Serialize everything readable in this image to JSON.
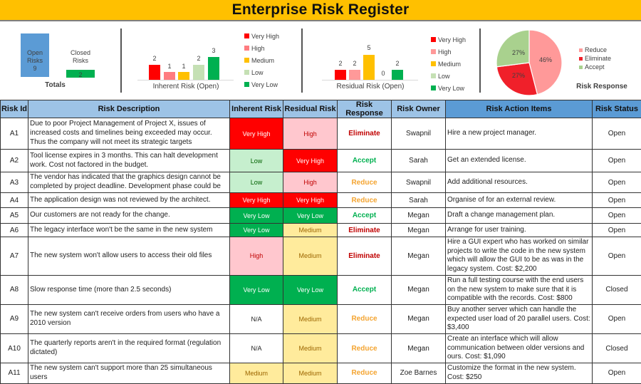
{
  "title": "Enterprise Risk Register",
  "colors": {
    "title_bg": "#FFC000",
    "very_high": "#FF0000",
    "high": "#FFC7CE",
    "high_bar": "#FF7C80",
    "medium": "#FFEB9C",
    "medium_bar": "#FFC000",
    "low": "#C6EFCE",
    "low_bar": "#C5E0B4",
    "very_low": "#00B050",
    "eliminate_text": "#C00000",
    "accept_text": "#00B050",
    "reduce_text": "#F4A430",
    "header_bg": "#9DC3E6",
    "header_bg_dark": "#5B9BD5"
  },
  "dashboard": {
    "totals": {
      "title": "Totals",
      "open_label_1": "Open",
      "open_label_2": "Risks",
      "open_value": "9",
      "closed_label_1": "Closed",
      "closed_label_2": "Risks",
      "closed_value": "2"
    },
    "inherent": {
      "title": "Inherent Risk (Open)",
      "labels": [
        "2",
        "1",
        "1",
        "2",
        "3"
      ]
    },
    "residual": {
      "title": "Residual Risk (Open)",
      "labels": [
        "2",
        "2",
        "5",
        "0",
        "2"
      ]
    },
    "legend": [
      "Very High",
      "High",
      "Medium",
      "Low",
      "Very Low"
    ],
    "pie": {
      "title": "Risk Response",
      "labels": [
        "46%",
        "27%",
        "27%"
      ],
      "legend": [
        "Reduce",
        "Eliminate",
        "Accept"
      ]
    }
  },
  "chart_data": [
    {
      "type": "bar",
      "title": "Totals",
      "categories": [
        "Open Risks",
        "Closed Risks"
      ],
      "values": [
        9,
        2
      ]
    },
    {
      "type": "bar",
      "title": "Inherent Risk (Open)",
      "categories": [
        "Very High",
        "High",
        "Medium",
        "Low",
        "Very Low"
      ],
      "values": [
        2,
        1,
        1,
        2,
        3
      ],
      "legend_position": "right"
    },
    {
      "type": "bar",
      "title": "Residual Risk (Open)",
      "categories": [
        "Very High",
        "High",
        "Medium",
        "Low",
        "Very Low"
      ],
      "values": [
        2,
        2,
        5,
        0,
        2
      ],
      "legend_position": "right"
    },
    {
      "type": "pie",
      "title": "Risk Response",
      "categories": [
        "Reduce",
        "Eliminate",
        "Accept"
      ],
      "values": [
        46,
        27,
        27
      ],
      "legend_position": "right"
    }
  ],
  "table": {
    "headers": [
      "Risk Id",
      "Risk Description",
      "Inherent Risk",
      "Residual Risk",
      "Risk Response",
      "Risk Owner",
      "Risk Action Items",
      "Risk Status"
    ],
    "rows": [
      {
        "id": "A1",
        "desc": "Due to poor Project Management of Project X, issues of increased costs and timelines being exceeded may occur. Thus the company will not meet its strategic targets",
        "inherent": "Very High",
        "residual": "High",
        "response": "Eliminate",
        "owner": "Swapnil",
        "action": "Hire a new project manager.",
        "status": "Open"
      },
      {
        "id": "A2",
        "desc": "Tool license expires in 3 months. This can halt development work. Cost not factored in the budget.",
        "inherent": "Low",
        "residual": "Very High",
        "response": "Accept",
        "owner": "Sarah",
        "action": "Get an extended license.",
        "status": "Open"
      },
      {
        "id": "A3",
        "desc": "The vendor has indicated that the graphics design cannot be completed by project deadline. Development phase could be",
        "inherent": "Low",
        "residual": "High",
        "response": "Reduce",
        "owner": "Swapnil",
        "action": "Add additional resources.",
        "status": "Open"
      },
      {
        "id": "A4",
        "desc": "The application design was not reviewed by the architect.",
        "inherent": "Very High",
        "residual": "Very High",
        "response": "Reduce",
        "owner": "Sarah",
        "action": "Organise of for an external review.",
        "status": "Open"
      },
      {
        "id": "A5",
        "desc": "Our customers are not ready for the change.",
        "inherent": "Very Low",
        "residual": "Very Low",
        "response": "Accept",
        "owner": "Megan",
        "action": "Draft a change management plan.",
        "status": "Open"
      },
      {
        "id": "A6",
        "desc": "The legacy interface won't be the same in the new system",
        "inherent": "Very Low",
        "residual": "Medium",
        "response": "Eliminate",
        "owner": "Megan",
        "action": "Arrange for user training.",
        "status": "Open"
      },
      {
        "id": "A7",
        "desc": "The new system won't allow users to access their old files",
        "inherent": "High",
        "residual": "Medium",
        "response": "Eliminate",
        "owner": "Megan",
        "action": "Hire a GUI expert who has worked on similar projects to write the code in the new system which will allow the GUI to be as was in the legacy system. Cost: $2,200",
        "status": "Open"
      },
      {
        "id": "A8",
        "desc": "Slow response time (more than 2.5 seconds)",
        "inherent": "Very Low",
        "residual": "Very Low",
        "response": "Accept",
        "owner": "Megan",
        "action": "Run a full testing course with the end users on the new system to make sure that it is compatible with the records. Cost: $800",
        "status": "Closed"
      },
      {
        "id": "A9",
        "desc": "The new system can't receive orders from users who have a 2010 version",
        "inherent": "N/A",
        "residual": "Medium",
        "response": "Reduce",
        "owner": "Megan",
        "action": "Buy another server which can handle the expected user load of 20 parallel users. Cost: $3,400",
        "status": "Open"
      },
      {
        "id": "A10",
        "desc": "The quarterly reports aren't in the required format (regulation dictated)",
        "inherent": "N/A",
        "residual": "Medium",
        "response": "Reduce",
        "owner": "Megan",
        "action": "Create an interface which will allow communication between older versions and ours. Cost: $1,090",
        "status": "Closed"
      },
      {
        "id": "A11",
        "desc": "The new system can't support more than 25 simultaneous users",
        "inherent": "Medium",
        "residual": "Medium",
        "response": "Reduce",
        "owner": "Zoe Barnes",
        "action": "Customize the format in the new system. Cost: $250",
        "status": "Open"
      }
    ]
  }
}
